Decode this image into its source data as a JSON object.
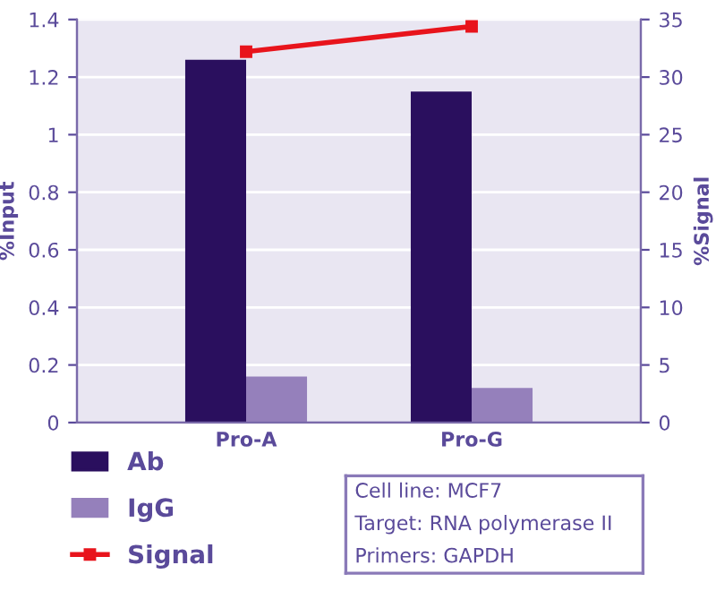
{
  "chart_data": {
    "type": "bar",
    "ylabel": "%Input",
    "y2label": "%Signal",
    "categories": [
      "Pro-A",
      "Pro-G"
    ],
    "series": [
      {
        "name": "Ab",
        "color": "#2a0f5e",
        "values": [
          1.26,
          1.15
        ]
      },
      {
        "name": "IgG",
        "color": "#9580bb",
        "values": [
          0.16,
          0.12
        ]
      },
      {
        "name": "Signal",
        "type": "line",
        "axis": "y2",
        "color": "#e8141c",
        "marker": "square",
        "values": [
          32.2,
          34.4
        ]
      }
    ],
    "ylim": [
      0,
      1.4
    ],
    "yticks": [
      0,
      0.2,
      0.4,
      0.6,
      0.8,
      1,
      1.2,
      1.4
    ],
    "y2lim": [
      0,
      35
    ],
    "y2ticks": [
      0,
      5,
      10,
      15,
      20,
      25,
      30,
      35
    ],
    "grid": "y",
    "legend": "bottom left",
    "annotations": [
      "Cell line: MCF7",
      "Target: RNA polymerase II",
      "Primers: GAPDH"
    ]
  }
}
